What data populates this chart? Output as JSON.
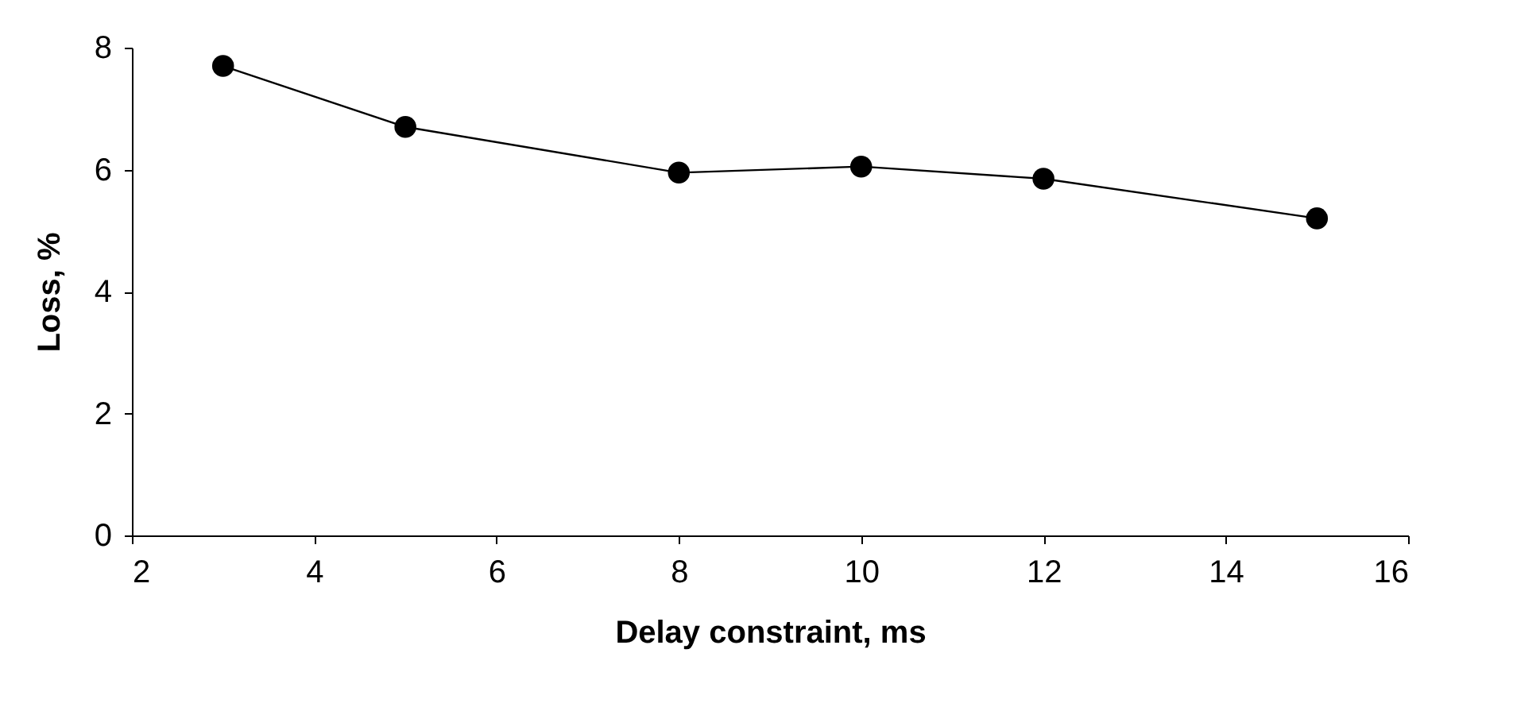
{
  "chart_data": {
    "type": "line",
    "xlabel": "Delay constraint, ms",
    "ylabel": "Loss, %",
    "x": [
      3,
      5,
      8,
      10,
      12,
      15
    ],
    "series": [
      {
        "color": "#000000",
        "values": [
          7.7,
          6.7,
          5.95,
          6.05,
          5.85,
          5.2
        ]
      }
    ],
    "xlim": [
      2,
      16
    ],
    "xticks": [
      2,
      4,
      6,
      8,
      10,
      12,
      14,
      16
    ],
    "ylim": [
      0,
      8
    ],
    "yticks": [
      0,
      2,
      4,
      6,
      8
    ],
    "grid": false,
    "marker": "circle",
    "line_style": "solid"
  }
}
